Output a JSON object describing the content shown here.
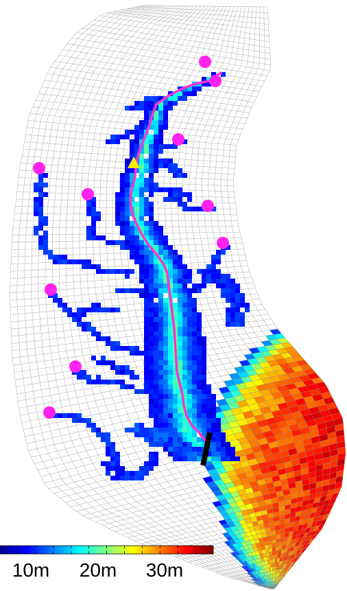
{
  "map": {
    "type": "curvilinear estuary model grid with bathymetry",
    "colors": {
      "grid_line": "#b8b8b8",
      "river_path": "#ff33cc",
      "station_marker": "#ff22ee",
      "triangle_marker": "#ffee00",
      "boundary_bar": "#000000"
    }
  },
  "colorbar": {
    "colormap": "jet",
    "ticks": [
      {
        "value": 10,
        "label": "10m"
      },
      {
        "value": 20,
        "label": "20m"
      },
      {
        "value": 30,
        "label": "30m"
      }
    ]
  }
}
